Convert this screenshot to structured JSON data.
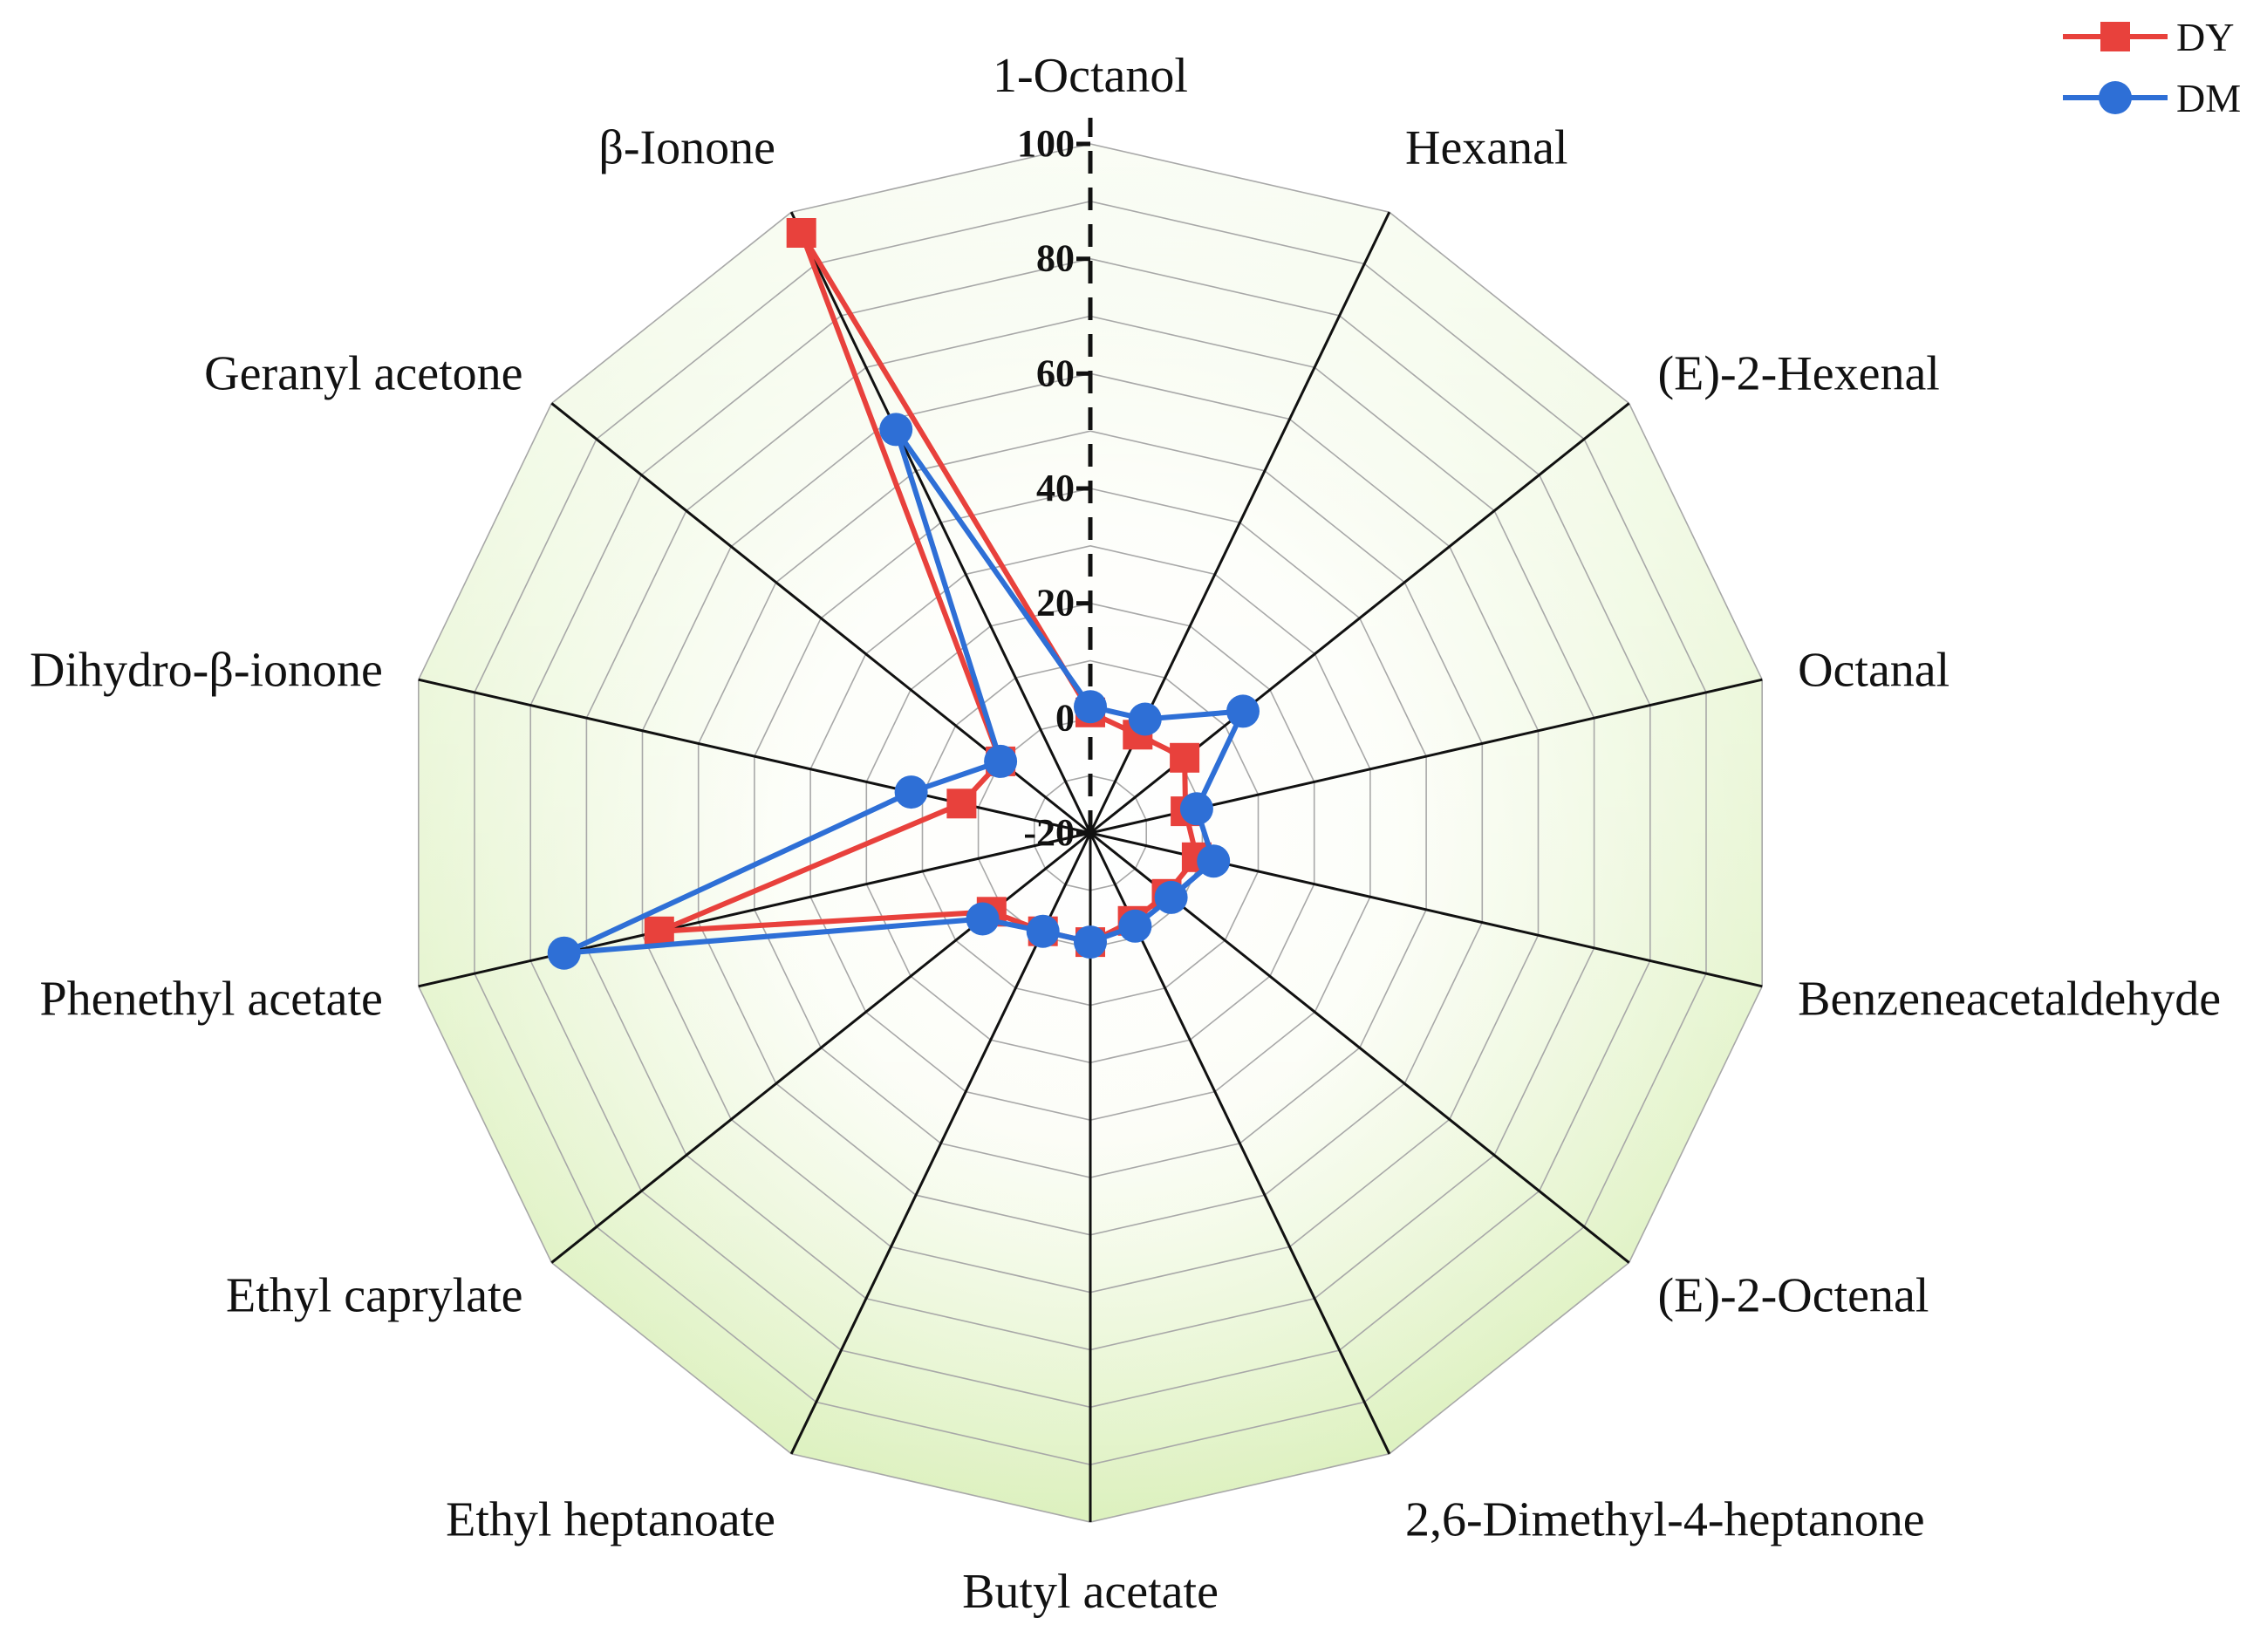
{
  "chart_data": {
    "type": "radar",
    "categories": [
      "1-Octanol",
      "Hexanal",
      "(E)-2-Hexenal",
      "Octanal",
      "Benzeneacetaldehyde",
      "(E)-2-Octenal",
      "2,6-Dimethyl-4-heptanone",
      "Butyl acetate",
      "Ethyl heptanoate",
      "Ethyl caprylate",
      "Phenethyl acetate",
      "Dihydro-β-ionone",
      "Geranyl acetone",
      "β-Ionone"
    ],
    "series": [
      {
        "name": "DY",
        "color": "#e8413c",
        "marker": "square",
        "values": [
          1,
          -1,
          1,
          -3,
          -1,
          -3,
          -3,
          -1,
          -1,
          2,
          57,
          3,
          0,
          96
        ]
      },
      {
        "name": "DM",
        "color": "#2e6fd6",
        "marker": "circle",
        "values": [
          2,
          2,
          14,
          -1,
          2,
          -2,
          -2,
          -1,
          -1,
          4,
          74,
          12,
          0,
          58
        ]
      }
    ],
    "rlim": [
      -20,
      100
    ],
    "rticks": [
      "-20",
      "0",
      "20",
      "40",
      "60",
      "80",
      "100"
    ],
    "legend": "top-right",
    "grid": true
  }
}
